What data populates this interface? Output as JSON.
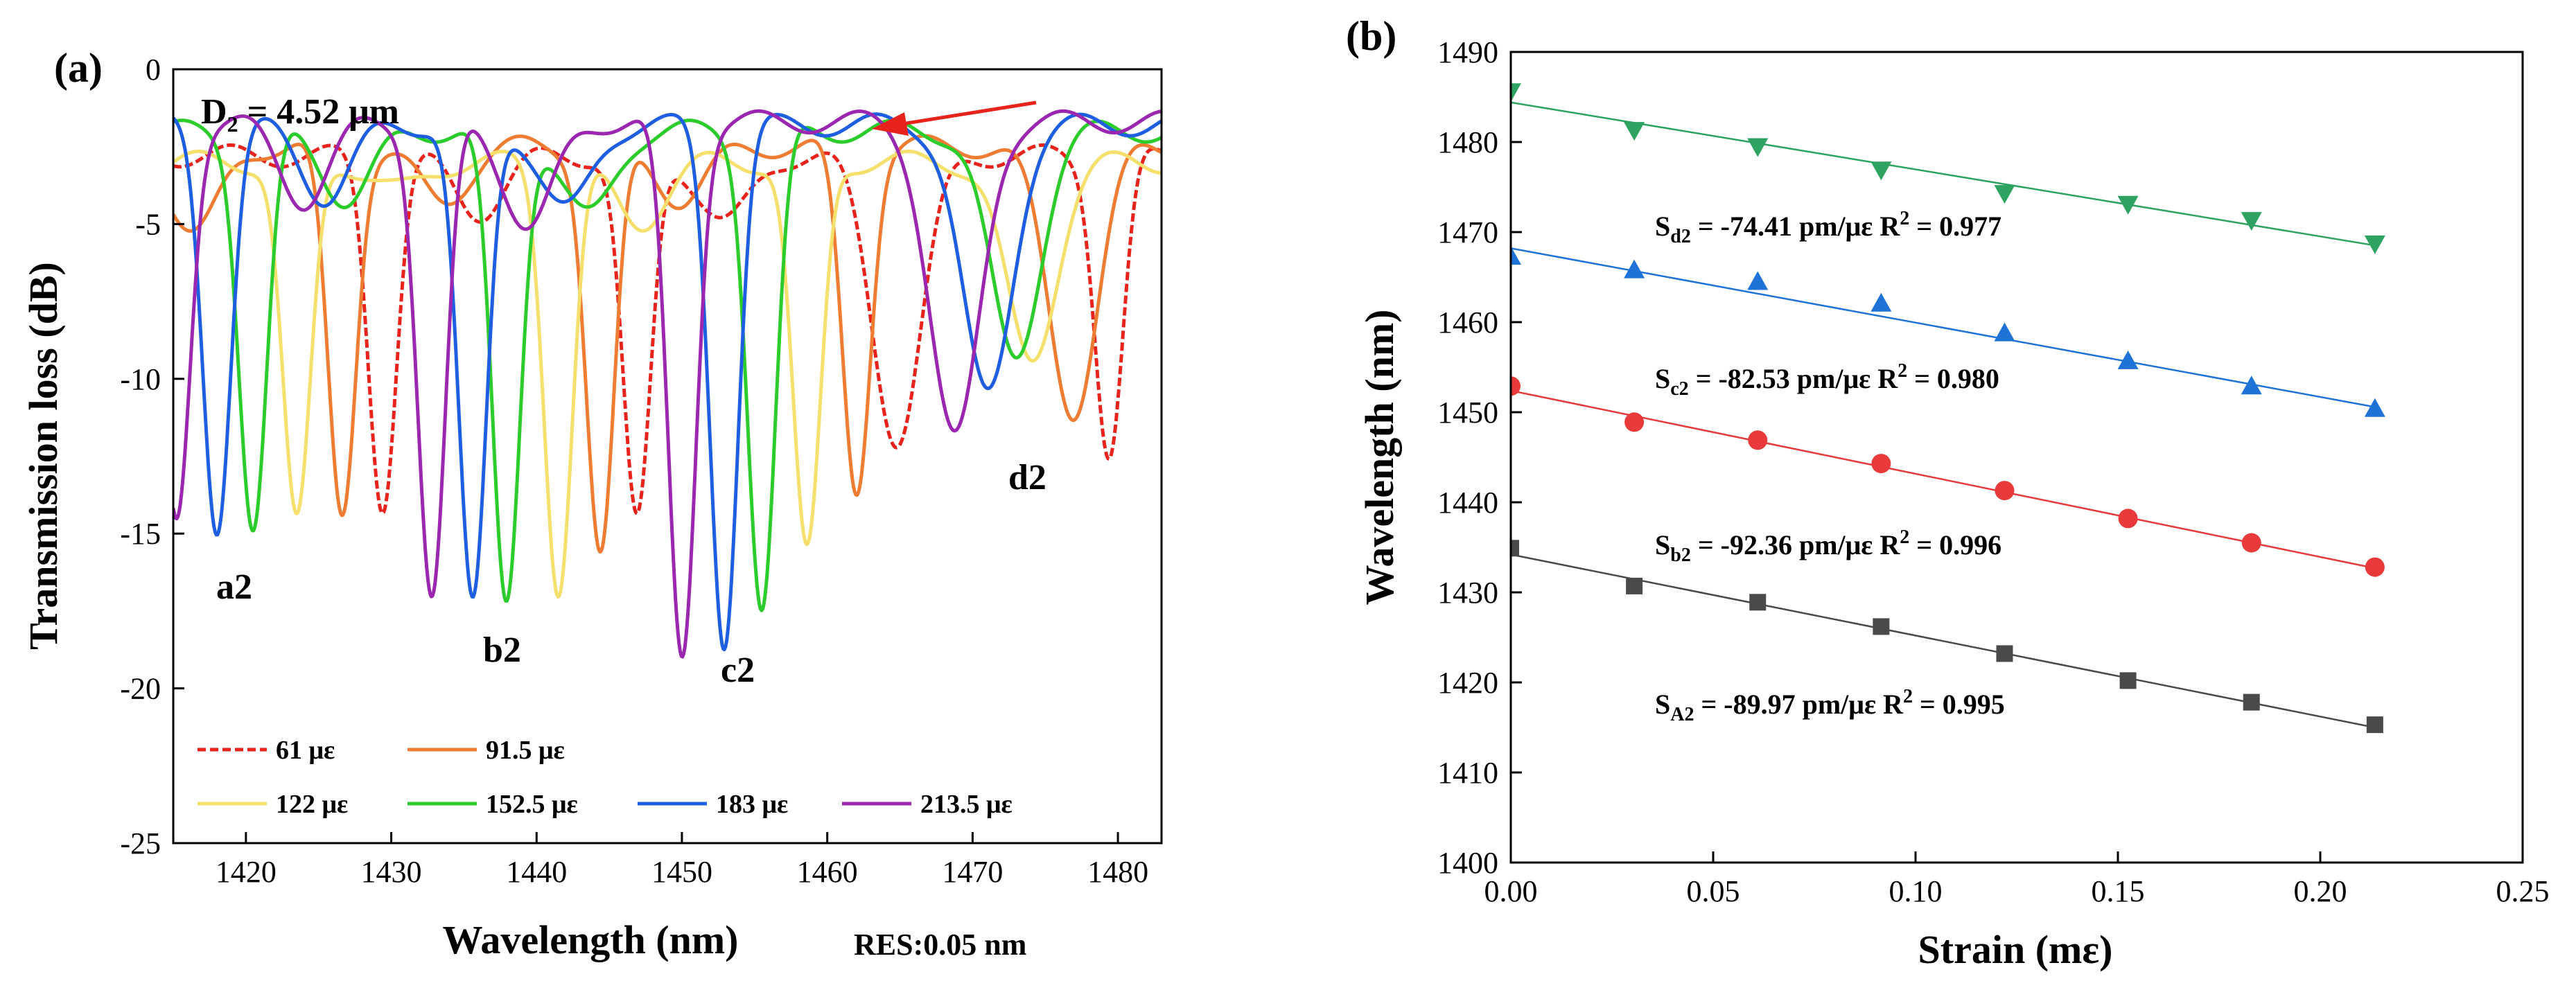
{
  "chart_data": [
    {
      "type": "line",
      "panel": "(a)",
      "xlabel": "Wavelength (nm)",
      "ylabel": "Transmission loss (dB)",
      "xlim": [
        1415,
        1483
      ],
      "ylim": [
        -25,
        0
      ],
      "xticks": [
        1420,
        1430,
        1440,
        1450,
        1460,
        1470,
        1480
      ],
      "yticks": [
        0,
        -5,
        -10,
        -15,
        -20,
        -25
      ],
      "annotations": {
        "diameter": "D",
        "diameter_sub": "2",
        "diameter_value": " = 4.52 μm",
        "resolution": "RES:0.05 nm",
        "dip_labels": [
          "a2",
          "b2",
          "c2",
          "d2"
        ]
      },
      "legend": [
        "61 με",
        "91.5 με",
        "122 με",
        "152.5 με",
        "183 με",
        "213.5 με"
      ],
      "series": [
        {
          "name": "61 με",
          "color": "#e8231b",
          "dashed": true,
          "top": -2.8,
          "dips": [
            [
              1429.4,
              -14.0
            ],
            [
              1436.0,
              -4.6
            ],
            [
              1446.9,
              -14.7
            ],
            [
              1453.0,
              -5.0
            ],
            [
              1464.8,
              -11.9
            ],
            [
              1479.4,
              -12.4
            ]
          ]
        },
        {
          "name": "91.5 με",
          "color": "#ee7d33",
          "dashed": false,
          "top": -2.5,
          "dips": [
            [
              1416.5,
              -5.3
            ],
            [
              1426.6,
              -14.4
            ],
            [
              1433.5,
              -4.3
            ],
            [
              1444.4,
              -15.7
            ],
            [
              1450.0,
              -4.2
            ],
            [
              1462.0,
              -13.6
            ],
            [
              1476.9,
              -11.0
            ]
          ]
        },
        {
          "name": "122 με",
          "color": "#f5e06d",
          "dashed": false,
          "top": -3.0,
          "dips": [
            [
              1423.5,
              -14.7
            ],
            [
              1430.5,
              -3.9
            ],
            [
              1441.5,
              -16.7
            ],
            [
              1447.0,
              -5.0
            ],
            [
              1458.6,
              -15.7
            ],
            [
              1474.0,
              -9.5
            ]
          ]
        },
        {
          "name": "152.5 με",
          "color": "#2ccc2c",
          "dashed": false,
          "top": -2.0,
          "dips": [
            [
              1420.5,
              -14.8
            ],
            [
              1427.0,
              -4.2
            ],
            [
              1437.9,
              -17.3
            ],
            [
              1443.5,
              -4.8
            ],
            [
              1455.5,
              -17.4
            ],
            [
              1472.9,
              -9.4
            ]
          ]
        },
        {
          "name": "183 με",
          "color": "#1d5fe0",
          "dashed": false,
          "top": -1.8,
          "dips": [
            [
              1418.0,
              -14.7
            ],
            [
              1425.5,
              -4.1
            ],
            [
              1435.6,
              -17.4
            ],
            [
              1442.0,
              -4.6
            ],
            [
              1452.9,
              -18.4
            ],
            [
              1471.0,
              -10.6
            ]
          ]
        },
        {
          "name": "213.5 με",
          "color": "#9b27b0",
          "dashed": false,
          "top": -1.7,
          "dips": [
            [
              1415.2,
              -14.5
            ],
            [
              1424.0,
              -4.2
            ],
            [
              1432.8,
              -17.1
            ],
            [
              1439.5,
              -5.1
            ],
            [
              1450.0,
              -19.0
            ],
            [
              1468.8,
              -12.0
            ]
          ]
        }
      ]
    },
    {
      "type": "scatter",
      "panel": "(b)",
      "xlabel": "Strain (mε)",
      "ylabel": "Wavelength (nm)",
      "xlim": [
        0.0,
        0.25
      ],
      "ylim": [
        1400,
        1490
      ],
      "xticks": [
        "0.00",
        "0.05",
        "0.10",
        "0.15",
        "0.20",
        "0.25"
      ],
      "yticks": [
        1400,
        1410,
        1420,
        1430,
        1440,
        1450,
        1460,
        1470,
        1480,
        1490
      ],
      "x": [
        0.0,
        0.0305,
        0.061,
        0.0915,
        0.122,
        0.1525,
        0.183,
        0.2135
      ],
      "series": [
        {
          "name": "d2",
          "marker": "triangle-down",
          "color": "#2ea361",
          "sub": "d2",
          "fit_value": " = -74.41 pm/με  R",
          "r2": " = 0.977",
          "fit": [
            1484.4,
            -74.41
          ],
          "values": [
            1485.6,
            1481.3,
            1479.5,
            1476.9,
            1474.3,
            1473.1,
            1471.3,
            1468.7
          ]
        },
        {
          "name": "c2",
          "marker": "triangle-up",
          "color": "#1f73d6",
          "sub": "c2",
          "fit_value": " = -82.53 pm/με  R",
          "r2": " = 0.980",
          "fit": [
            1468.2,
            -82.53
          ],
          "values": [
            1467.3,
            1465.8,
            1464.5,
            1462.1,
            1458.8,
            1455.7,
            1452.9,
            1450.4
          ]
        },
        {
          "name": "b2",
          "marker": "circle",
          "color": "#e83a3a",
          "sub": "b2",
          "fit_value": " = -92.36 pm/με  R",
          "r2": " = 0.996",
          "fit": [
            1452.4,
            -92.36
          ],
          "values": [
            1452.9,
            1448.9,
            1446.9,
            1444.3,
            1441.3,
            1438.2,
            1435.5,
            1432.8
          ]
        },
        {
          "name": "A2",
          "marker": "square",
          "color": "#4a4a4a",
          "sub": "A2",
          "fit_value": " = -89.97 pm/με  R",
          "r2": " = 0.995",
          "fit": [
            1434.2,
            -89.97
          ],
          "values": [
            1434.9,
            1430.7,
            1428.9,
            1426.2,
            1423.2,
            1420.2,
            1417.8,
            1415.3
          ]
        }
      ]
    }
  ]
}
